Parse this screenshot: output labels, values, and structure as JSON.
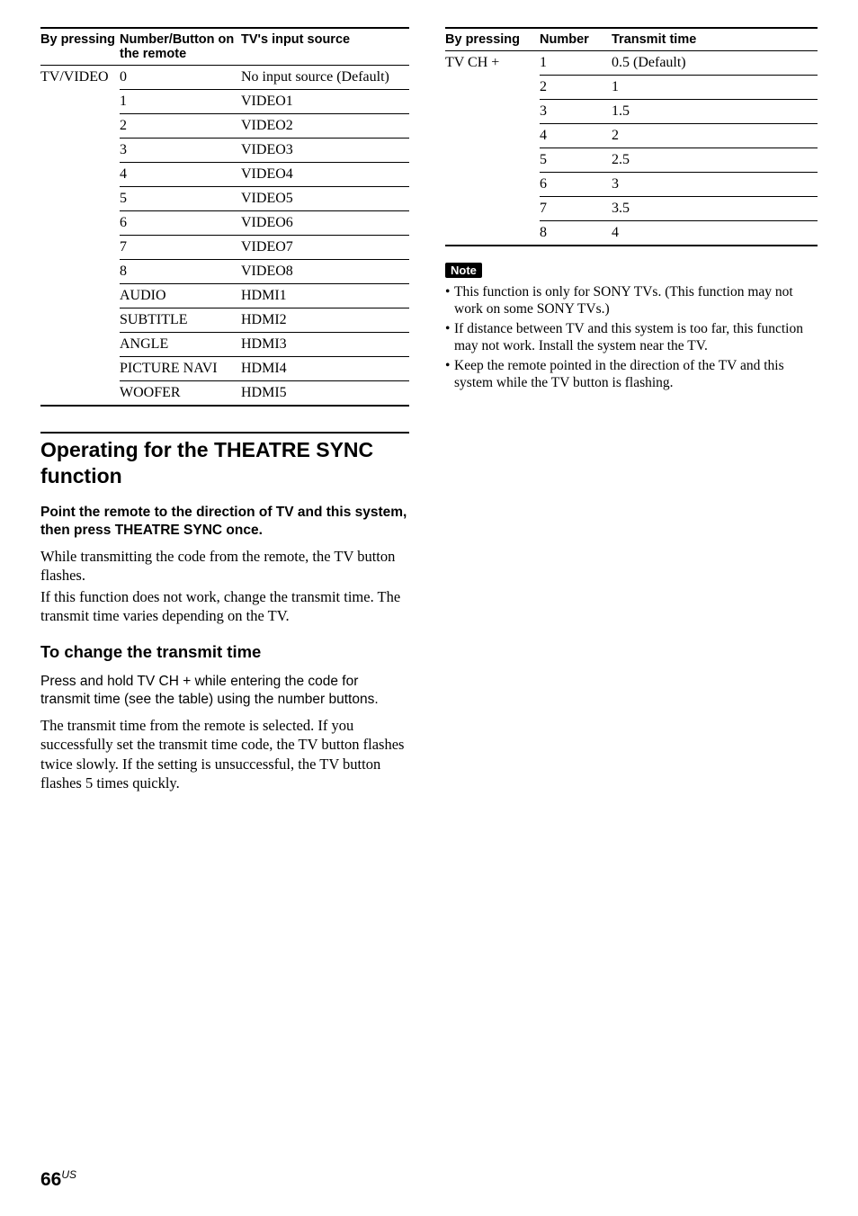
{
  "leftTable": {
    "headers": [
      "By pressing",
      "Number/Button on the remote",
      "TV's input source"
    ],
    "pressing": "TV/VIDEO",
    "rows": [
      {
        "btn": "0",
        "src": "No input source (Default)"
      },
      {
        "btn": "1",
        "src": "VIDEO1"
      },
      {
        "btn": "2",
        "src": "VIDEO2"
      },
      {
        "btn": "3",
        "src": "VIDEO3"
      },
      {
        "btn": "4",
        "src": "VIDEO4"
      },
      {
        "btn": "5",
        "src": "VIDEO5"
      },
      {
        "btn": "6",
        "src": "VIDEO6"
      },
      {
        "btn": "7",
        "src": "VIDEO7"
      },
      {
        "btn": "8",
        "src": "VIDEO8"
      },
      {
        "btn": "AUDIO",
        "src": "HDMI1"
      },
      {
        "btn": "SUBTITLE",
        "src": "HDMI2"
      },
      {
        "btn": "ANGLE",
        "src": "HDMI3"
      },
      {
        "btn": "PICTURE NAVI",
        "src": "HDMI4"
      },
      {
        "btn": "WOOFER",
        "src": "HDMI5"
      }
    ]
  },
  "section": {
    "h1": "Operating for the THEATRE SYNC function",
    "instr": "Point the remote to the direction of TV and this system, then press THEATRE SYNC once.",
    "p1": "While transmitting the code from the remote, the TV button flashes.",
    "p2": "If this function does not work, change the transmit time. The transmit time varies depending on the TV.",
    "h2": "To change the transmit time",
    "instr2": "Press and hold TV CH + while entering the code for transmit time (see the table) using the number buttons.",
    "p3": "The transmit time from the remote is selected. If you successfully set the transmit time code, the TV button flashes twice slowly. If the setting is unsuccessful, the TV button flashes 5 times quickly."
  },
  "rightTable": {
    "headers": [
      "By pressing",
      "Number",
      "Transmit time"
    ],
    "pressing": "TV CH +",
    "rows": [
      {
        "num": "1",
        "tt": "0.5 (Default)"
      },
      {
        "num": "2",
        "tt": "1"
      },
      {
        "num": "3",
        "tt": "1.5"
      },
      {
        "num": "4",
        "tt": "2"
      },
      {
        "num": "5",
        "tt": "2.5"
      },
      {
        "num": "6",
        "tt": "3"
      },
      {
        "num": "7",
        "tt": "3.5"
      },
      {
        "num": "8",
        "tt": "4"
      }
    ]
  },
  "note": {
    "label": "Note",
    "items": [
      "This function is only for SONY TVs. (This function may not work on some SONY TVs.)",
      "If distance between TV and this system is too far, this function may not work. Install the system near the TV.",
      "Keep the remote pointed in the direction of the TV and this system while the TV button is flashing."
    ]
  },
  "page": {
    "num": "66",
    "region": "US"
  }
}
